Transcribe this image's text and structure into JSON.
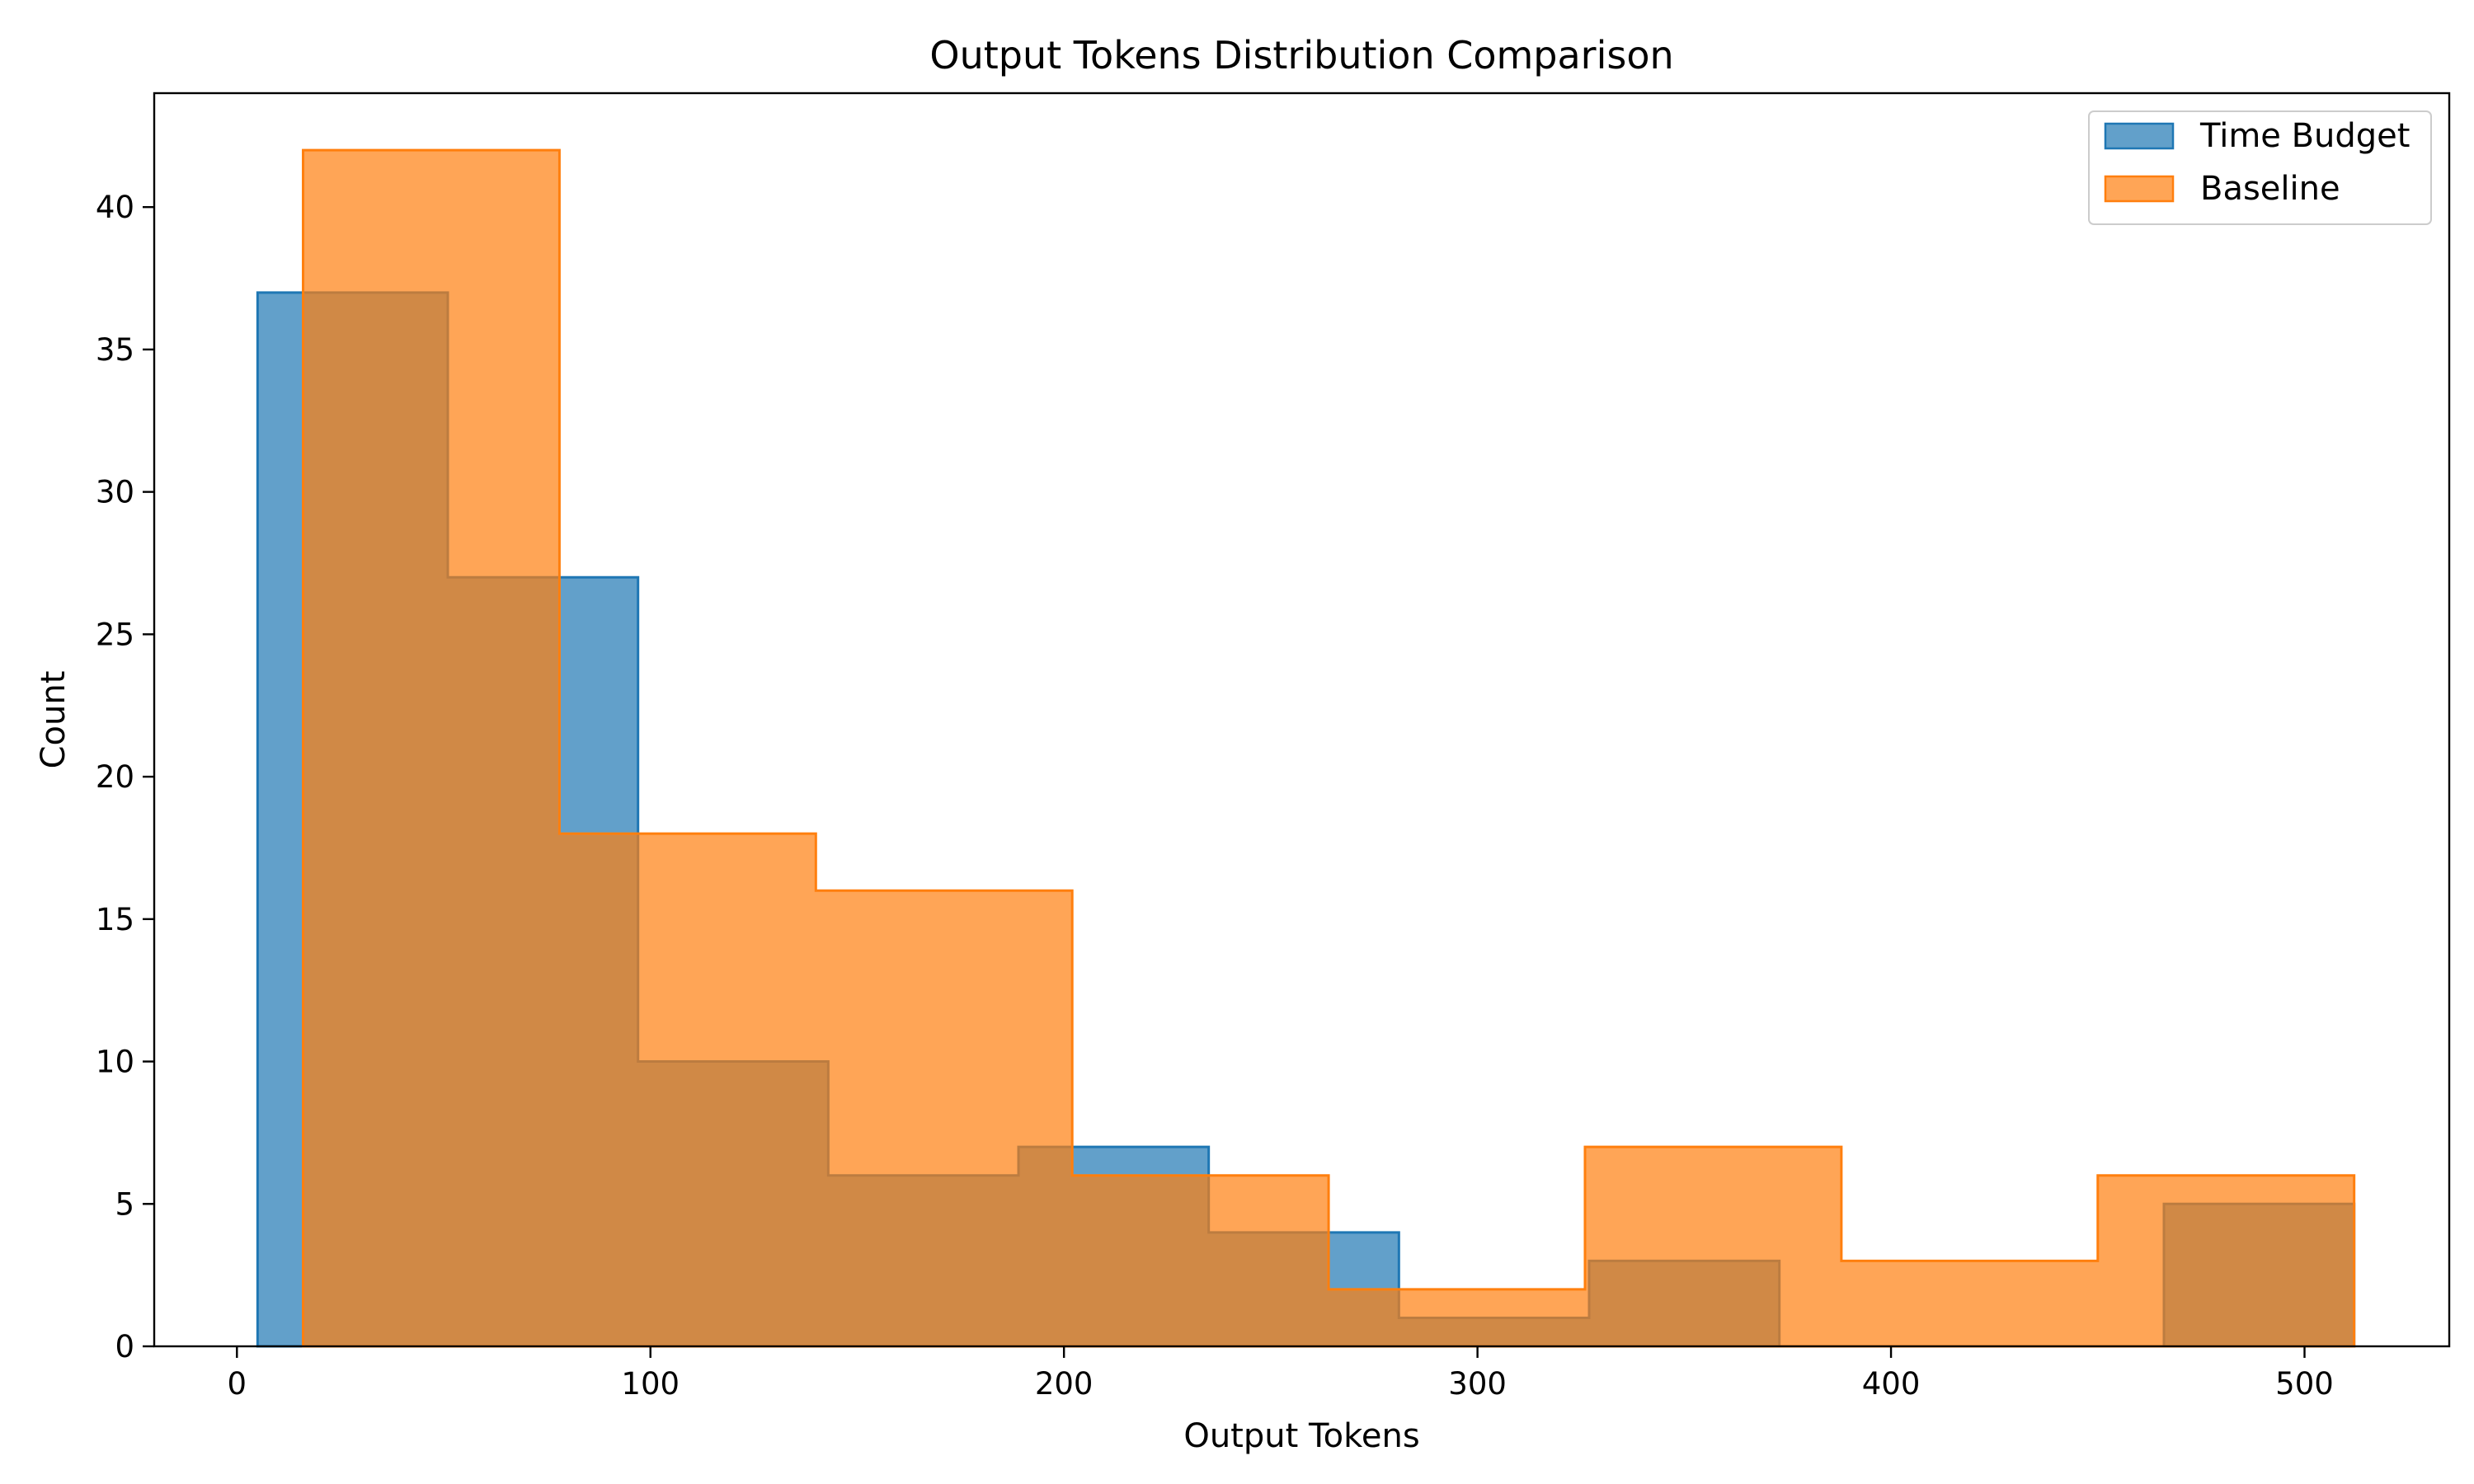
{
  "chart_data": {
    "type": "histogram",
    "title": "Output Tokens Distribution Comparison",
    "xlabel": "Output Tokens",
    "ylabel": "Count",
    "xlim": [
      -20,
      535
    ],
    "ylim": [
      0,
      44
    ],
    "xticks": [
      0,
      100,
      200,
      300,
      400,
      500
    ],
    "yticks": [
      0,
      5,
      10,
      15,
      20,
      25,
      30,
      35,
      40
    ],
    "grid": false,
    "legend_position": "top-right",
    "series": [
      {
        "name": "Time Budget",
        "color": "#1f77b4",
        "fill_opacity": 0.7,
        "bin_edges": [
          5,
          51,
          97,
          143,
          189,
          235,
          281,
          327,
          373,
          419,
          466,
          512
        ],
        "counts": [
          37,
          27,
          10,
          6,
          7,
          4,
          1,
          3,
          0,
          0,
          5
        ]
      },
      {
        "name": "Baseline",
        "color": "#ff7f0e",
        "fill_opacity": 0.7,
        "bin_edges": [
          16,
          78,
          140,
          202,
          264,
          326,
          388,
          450,
          512
        ],
        "counts": [
          42,
          18,
          16,
          6,
          2,
          7,
          3,
          6
        ]
      }
    ]
  }
}
